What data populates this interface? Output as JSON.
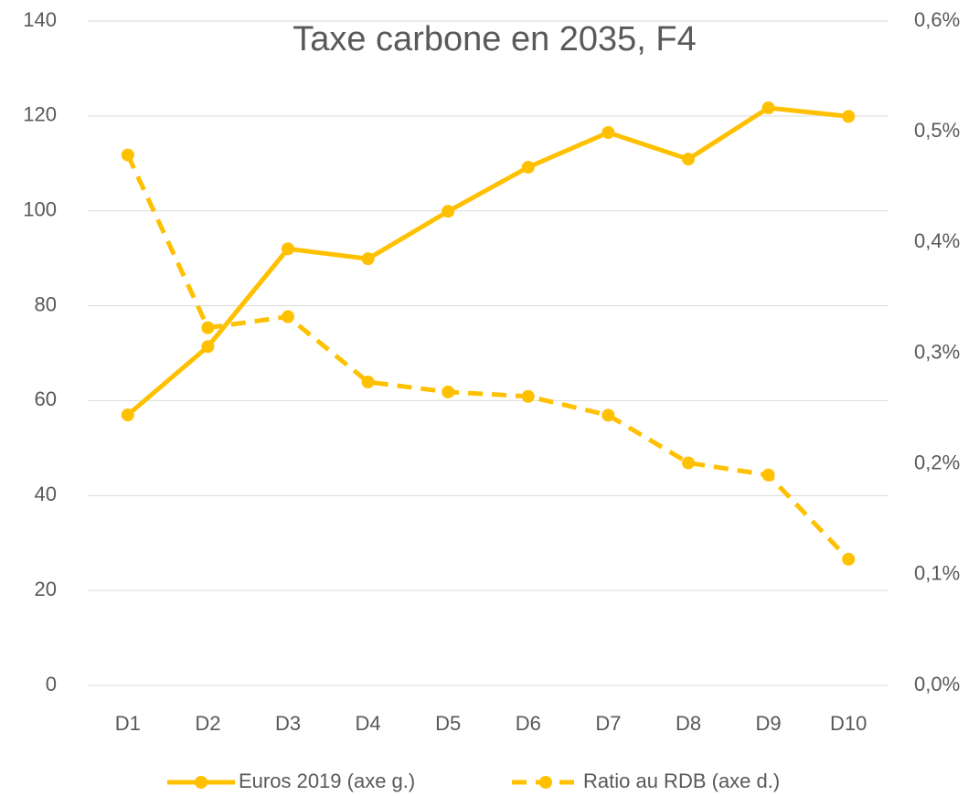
{
  "chart_data": {
    "type": "line",
    "title": "Taxe carbone en 2035, F4",
    "categories": [
      "D1",
      "D2",
      "D3",
      "D4",
      "D5",
      "D6",
      "D7",
      "D8",
      "D9",
      "D10"
    ],
    "series": [
      {
        "name": "Euros 2019 (axe g.)",
        "color": "#ffc000",
        "dash": false,
        "values": [
          57.0,
          71.4,
          92.0,
          89.9,
          99.9,
          109.2,
          116.5,
          110.9,
          121.7,
          119.9
        ]
      },
      {
        "name": "Ratio au RDB (axe d.)",
        "color": "#ffc000",
        "dash": true,
        "axis": "y2",
        "values": [
          0.479,
          0.323,
          0.333,
          0.274,
          0.265,
          0.261,
          0.244,
          0.201,
          0.19,
          0.114
        ]
      }
    ],
    "ylim": [
      0,
      140
    ],
    "yticks": [
      0,
      20,
      40,
      60,
      80,
      100,
      120,
      140
    ],
    "y2lim": [
      0,
      0.6
    ],
    "y2ticks": [
      {
        "value": 0,
        "label": "0,0%"
      },
      {
        "value": 0.1,
        "label": "0,1%"
      },
      {
        "value": 0.2,
        "label": "0,2%"
      },
      {
        "value": 0.3,
        "label": "0,3%"
      },
      {
        "value": 0.4,
        "label": "0,4%"
      },
      {
        "value": 0.5,
        "label": "0,5%"
      },
      {
        "value": 0.6,
        "label": "0,6%"
      }
    ],
    "grid": true,
    "legend": "bottom"
  }
}
